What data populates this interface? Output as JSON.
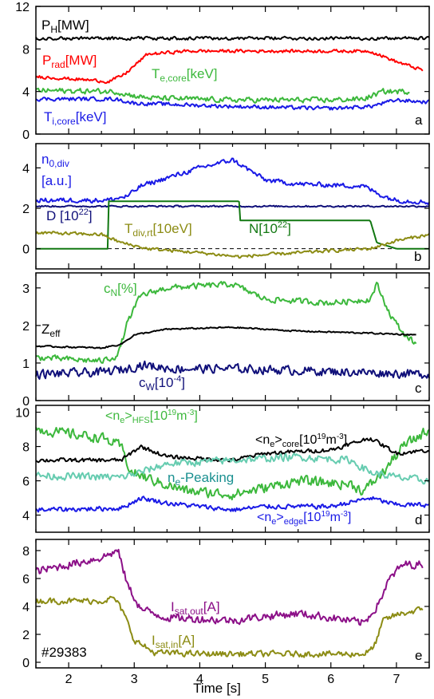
{
  "figure": {
    "shot_label": "#29383",
    "xlabel": "Time [s]",
    "x_ticks": [
      2,
      3,
      4,
      5,
      6,
      7
    ],
    "xlim": [
      1.5,
      7.5
    ],
    "colors": {
      "black": "#000000",
      "red": "#ff0000",
      "green": "#3cb83c",
      "blue": "#1a1ae6",
      "navy": "#10107a",
      "darkgreen": "#127812",
      "olive": "#8c8c14",
      "teal": "#66ccb0",
      "purple": "#8c1088",
      "darkteal": "#1a9090"
    }
  },
  "chart_data": [
    {
      "type": "line",
      "panel": "a",
      "ylim": [
        0,
        12
      ],
      "yticks": [
        0,
        4,
        8,
        12
      ],
      "series": [
        {
          "name": "P_H[MW]",
          "color": "black",
          "points": [
            [
              1.5,
              9.0
            ],
            [
              7.5,
              9.0
            ]
          ],
          "noise": 0.15
        },
        {
          "name": "P_rad[MW]",
          "color": "red",
          "points": [
            [
              1.5,
              5.4
            ],
            [
              2.5,
              5.0
            ],
            [
              2.6,
              4.9
            ],
            [
              2.85,
              5.6
            ],
            [
              3.2,
              7.5
            ],
            [
              3.8,
              7.8
            ],
            [
              6.6,
              7.8
            ],
            [
              7.0,
              6.8
            ],
            [
              7.4,
              6.0
            ]
          ],
          "noise": 0.15
        },
        {
          "name": "T_e,core[keV]",
          "color": "green",
          "points": [
            [
              1.5,
              4.1
            ],
            [
              2.7,
              4.0
            ],
            [
              3.0,
              3.6
            ],
            [
              3.2,
              3.4
            ],
            [
              4.5,
              3.2
            ],
            [
              6.0,
              3.2
            ],
            [
              6.5,
              3.3
            ],
            [
              6.8,
              4.0
            ],
            [
              7.2,
              4.0
            ]
          ],
          "noise": 0.25
        },
        {
          "name": "T_i,core[keV]",
          "color": "blue",
          "points": [
            [
              1.5,
              3.3
            ],
            [
              2.7,
              3.3
            ],
            [
              3.0,
              2.9
            ],
            [
              4.5,
              2.6
            ],
            [
              6.0,
              2.4
            ],
            [
              6.6,
              2.6
            ],
            [
              7.0,
              3.2
            ],
            [
              7.5,
              3.0
            ]
          ],
          "noise": 0.18
        }
      ]
    },
    {
      "type": "line",
      "panel": "b",
      "ylim": [
        -1,
        5.2
      ],
      "yticks": [
        0,
        2,
        4
      ],
      "series": [
        {
          "name": "n_0,div[a.u.]",
          "color": "blue",
          "points": [
            [
              1.5,
              2.4
            ],
            [
              2.6,
              2.4
            ],
            [
              2.9,
              2.6
            ],
            [
              3.1,
              3.1
            ],
            [
              3.5,
              3.5
            ],
            [
              4.0,
              4.0
            ],
            [
              4.5,
              4.4
            ],
            [
              4.8,
              3.8
            ],
            [
              5.0,
              3.4
            ],
            [
              5.5,
              3.2
            ],
            [
              6.5,
              3.1
            ],
            [
              6.8,
              2.6
            ],
            [
              7.0,
              2.4
            ],
            [
              7.5,
              2.3
            ]
          ],
          "noise": 0.12
        },
        {
          "name": "D [10^22]",
          "color": "navy",
          "points": [
            [
              1.5,
              2.1
            ],
            [
              7.5,
              2.1
            ]
          ],
          "noise": 0.04
        },
        {
          "name": "N[10^22]",
          "color": "darkgreen",
          "points": [
            [
              1.5,
              0.0
            ],
            [
              2.6,
              0.0
            ],
            [
              2.61,
              2.35
            ],
            [
              4.6,
              2.35
            ],
            [
              4.61,
              1.4
            ],
            [
              6.6,
              1.4
            ],
            [
              6.7,
              0.3
            ],
            [
              7.0,
              0.0
            ],
            [
              7.5,
              0.0
            ]
          ],
          "noise": 0.0
        },
        {
          "name": "T_div,rt[10eV]",
          "color": "olive",
          "points": [
            [
              1.5,
              0.8
            ],
            [
              2.5,
              0.7
            ],
            [
              2.8,
              0.3
            ],
            [
              3.2,
              0.0
            ],
            [
              4.0,
              -0.2
            ],
            [
              4.6,
              -0.4
            ],
            [
              5.0,
              -0.3
            ],
            [
              6.0,
              -0.1
            ],
            [
              6.6,
              0.0
            ],
            [
              7.0,
              0.4
            ],
            [
              7.5,
              0.7
            ]
          ],
          "noise": 0.08
        }
      ]
    },
    {
      "type": "line",
      "panel": "c",
      "ylim": [
        0,
        3.4
      ],
      "yticks": [
        0,
        1,
        2,
        3
      ],
      "series": [
        {
          "name": "c_N[%]",
          "color": "green",
          "points": [
            [
              1.5,
              1.15
            ],
            [
              2.5,
              1.05
            ],
            [
              2.75,
              1.2
            ],
            [
              2.9,
              2.1
            ],
            [
              3.1,
              2.8
            ],
            [
              3.5,
              3.0
            ],
            [
              4.5,
              3.1
            ],
            [
              5.0,
              2.7
            ],
            [
              6.0,
              2.6
            ],
            [
              6.6,
              2.7
            ],
            [
              6.7,
              3.1
            ],
            [
              6.9,
              2.3
            ],
            [
              7.1,
              1.8
            ],
            [
              7.3,
              1.5
            ]
          ],
          "noise": 0.08
        },
        {
          "name": "Z_eff",
          "color": "black",
          "points": [
            [
              1.5,
              1.45
            ],
            [
              2.5,
              1.4
            ],
            [
              2.8,
              1.5
            ],
            [
              3.0,
              1.75
            ],
            [
              3.5,
              1.9
            ],
            [
              4.5,
              1.95
            ],
            [
              5.5,
              1.85
            ],
            [
              6.5,
              1.8
            ],
            [
              7.3,
              1.75
            ]
          ],
          "noise": 0.02
        },
        {
          "name": "c_W[10^-4]",
          "color": "navy",
          "points": [
            [
              1.5,
              0.7
            ],
            [
              2.5,
              0.75
            ],
            [
              2.9,
              0.85
            ],
            [
              3.1,
              0.95
            ],
            [
              3.6,
              0.85
            ],
            [
              4.5,
              0.85
            ],
            [
              5.5,
              0.8
            ],
            [
              6.5,
              0.75
            ],
            [
              7.5,
              0.7
            ]
          ],
          "noise": 0.12
        }
      ]
    },
    {
      "type": "line",
      "panel": "d",
      "ylim": [
        3,
        10.4
      ],
      "yticks": [
        4,
        6,
        8,
        10
      ],
      "series": [
        {
          "name": "<n_e>_HFS[10^19m^-3]",
          "color": "green",
          "points": [
            [
              1.5,
              9.0
            ],
            [
              2.5,
              8.5
            ],
            [
              2.8,
              8.0
            ],
            [
              2.95,
              6.5
            ],
            [
              3.3,
              6.0
            ],
            [
              3.8,
              5.4
            ],
            [
              4.5,
              5.2
            ],
            [
              5.0,
              5.6
            ],
            [
              5.5,
              6.0
            ],
            [
              6.3,
              5.8
            ],
            [
              6.5,
              5.4
            ],
            [
              6.8,
              6.5
            ],
            [
              7.1,
              8.0
            ],
            [
              7.5,
              9.0
            ]
          ],
          "noise": 0.3
        },
        {
          "name": "<n_e>_core[10^19m^-3]",
          "color": "black",
          "points": [
            [
              1.5,
              7.2
            ],
            [
              2.8,
              7.2
            ],
            [
              3.1,
              8.0
            ],
            [
              3.5,
              7.4
            ],
            [
              4.5,
              7.2
            ],
            [
              5.0,
              7.6
            ],
            [
              6.0,
              7.8
            ],
            [
              6.6,
              8.5
            ],
            [
              7.0,
              7.6
            ],
            [
              7.5,
              7.8
            ]
          ],
          "noise": 0.12
        },
        {
          "name": "n_e-Peaking",
          "color": "teal",
          "points": [
            [
              1.5,
              6.3
            ],
            [
              2.8,
              6.2
            ],
            [
              3.1,
              6.5
            ],
            [
              3.5,
              7.0
            ],
            [
              4.5,
              7.2
            ],
            [
              5.5,
              7.4
            ],
            [
              6.3,
              7.2
            ],
            [
              6.6,
              6.5
            ],
            [
              7.0,
              6.2
            ],
            [
              7.5,
              6.0
            ]
          ],
          "noise": 0.22
        },
        {
          "name": "<n_e>_edge[10^19m^-3]",
          "color": "blue",
          "points": [
            [
              1.5,
              4.3
            ],
            [
              2.8,
              4.4
            ],
            [
              3.1,
              5.0
            ],
            [
              3.5,
              4.7
            ],
            [
              4.5,
              4.3
            ],
            [
              5.0,
              4.5
            ],
            [
              6.0,
              4.5
            ],
            [
              6.6,
              5.0
            ],
            [
              7.0,
              4.6
            ],
            [
              7.5,
              4.6
            ]
          ],
          "noise": 0.14
        }
      ]
    },
    {
      "type": "line",
      "panel": "e",
      "ylim": [
        -0.4,
        8.8
      ],
      "yticks": [
        0,
        2,
        4,
        6,
        8
      ],
      "series": [
        {
          "name": "I_sat,out[A]",
          "color": "purple",
          "points": [
            [
              1.5,
              6.5
            ],
            [
              2.5,
              7.5
            ],
            [
              2.75,
              8.0
            ],
            [
              2.9,
              5.5
            ],
            [
              3.1,
              3.8
            ],
            [
              3.5,
              3.2
            ],
            [
              4.5,
              3.0
            ],
            [
              5.0,
              3.3
            ],
            [
              5.5,
              3.5
            ],
            [
              6.0,
              3.2
            ],
            [
              6.5,
              2.8
            ],
            [
              6.7,
              4.0
            ],
            [
              6.9,
              6.0
            ],
            [
              7.1,
              7.0
            ],
            [
              7.4,
              7.0
            ]
          ],
          "noise": 0.3
        },
        {
          "name": "I_sat,in[A]",
          "color": "olive",
          "points": [
            [
              1.5,
              4.4
            ],
            [
              2.5,
              4.4
            ],
            [
              2.7,
              4.6
            ],
            [
              2.85,
              3.4
            ],
            [
              3.0,
              1.6
            ],
            [
              3.3,
              0.7
            ],
            [
              4.0,
              0.6
            ],
            [
              5.5,
              0.6
            ],
            [
              6.5,
              0.6
            ],
            [
              6.65,
              1.0
            ],
            [
              6.8,
              3.0
            ],
            [
              7.0,
              3.4
            ],
            [
              7.4,
              3.8
            ]
          ],
          "noise": 0.22
        }
      ]
    }
  ],
  "labels": {
    "a": {
      "PH_main": "P",
      "PH_sub": "H",
      "PH_tail": "[MW]",
      "Prad_main": "P",
      "Prad_sub": "rad",
      "Prad_tail": "[MW]",
      "Te_main": "T",
      "Te_sub": "e,core",
      "Te_tail": "[keV]",
      "Ti_main": "T",
      "Ti_sub": "i,core",
      "Ti_tail": "[keV]",
      "panel": "a"
    },
    "b": {
      "n0_main": "n",
      "n0_sub": "0,div",
      "n0_unit": "[a.u.]",
      "D_main": "D [10",
      "D_sup": "22",
      "D_tail": "]",
      "N_main": "N[10",
      "N_sup": "22",
      "N_tail": "]",
      "Tdiv_main": "T",
      "Tdiv_sub": "div,rt",
      "Tdiv_tail": "[10eV]",
      "panel": "b"
    },
    "c": {
      "cN_main": "c",
      "cN_sub": "N",
      "cN_tail": "[%]",
      "Zeff_main": "Z",
      "Zeff_sub": "eff",
      "cW_main": "c",
      "cW_sub": "W",
      "cW_mid": "[10",
      "cW_sup": "-4",
      "cW_tail": "]",
      "panel": "c"
    },
    "d": {
      "hfs_main": "<n",
      "hfs_sub1": "e",
      "hfs_mid": ">",
      "hfs_sub2": "HFS",
      "hfs_unit": "[10",
      "hfs_sup1": "19",
      "hfs_unit2": "m",
      "hfs_sup2": "-3",
      "hfs_tail": "]",
      "core_main": "<n",
      "core_sub1": "e",
      "core_mid": ">",
      "core_sub2": "core",
      "core_unit": "[10",
      "core_sup1": "19",
      "core_unit2": "m",
      "core_sup2": "-3",
      "core_tail": "]",
      "peak_main": "n",
      "peak_sub": "e",
      "peak_tail": "-Peaking",
      "edge_main": "<n",
      "edge_sub1": "e",
      "edge_mid": ">",
      "edge_sub2": "edge",
      "edge_unit": "[10",
      "edge_sup1": "19",
      "edge_unit2": "m",
      "edge_sup2": "-3",
      "edge_tail": "]",
      "panel": "d"
    },
    "e": {
      "out_main": "I",
      "out_sub": "sat,out",
      "out_tail": "[A]",
      "in_main": "I",
      "in_sub": "sat,in",
      "in_tail": "[A]",
      "panel": "e"
    }
  }
}
